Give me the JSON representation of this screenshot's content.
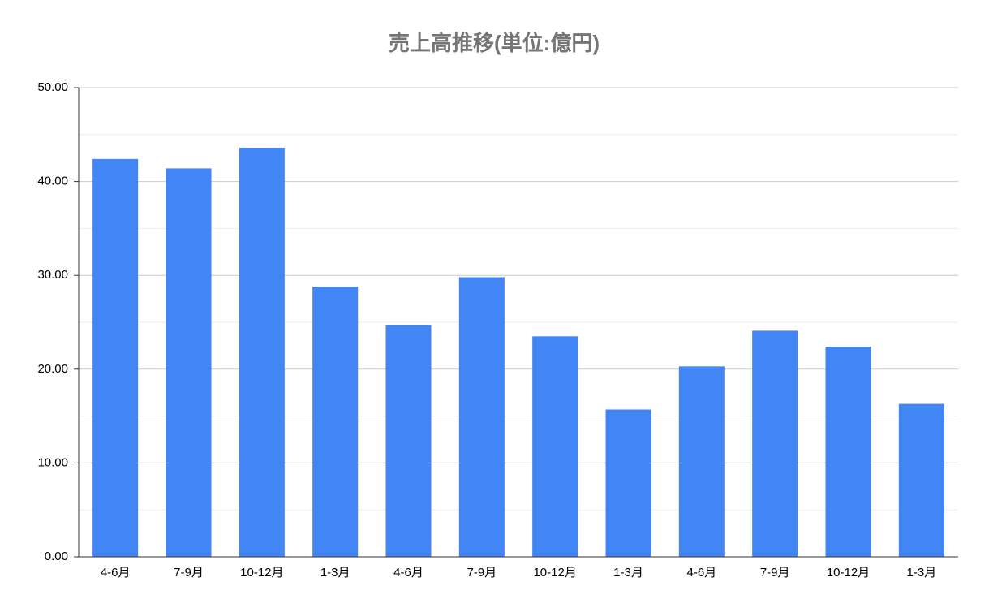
{
  "chart_data": {
    "type": "bar",
    "title": "売上高推移(単位:億円)",
    "categories": [
      "4-6月",
      "7-9月",
      "10-12月",
      "1-3月",
      "4-6月",
      "7-9月",
      "10-12月",
      "1-3月",
      "4-6月",
      "7-9月",
      "10-12月",
      "1-3月"
    ],
    "values": [
      42.4,
      41.4,
      43.6,
      28.8,
      24.7,
      29.8,
      23.5,
      15.7,
      20.3,
      24.1,
      22.4,
      16.3
    ],
    "color": "#4285f4",
    "ylim": [
      0,
      50
    ],
    "yticks": [
      {
        "value": 0,
        "label": "0.00"
      },
      {
        "value": 10,
        "label": "10.00"
      },
      {
        "value": 20,
        "label": "20.00"
      },
      {
        "value": 30,
        "label": "30.00"
      },
      {
        "value": 40,
        "label": "40.00"
      },
      {
        "value": 50,
        "label": "50.00"
      }
    ],
    "grid": true
  }
}
